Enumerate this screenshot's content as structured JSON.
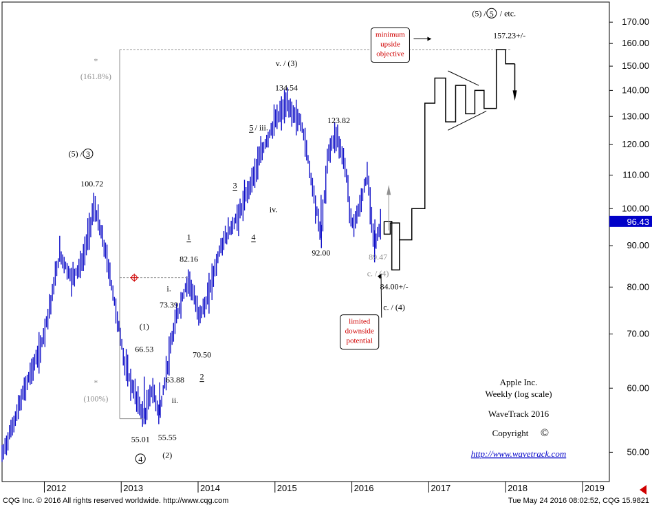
{
  "chart_data": {
    "type": "bar",
    "subtype": "ohlc-weekly",
    "scale": "log",
    "ylim": [
      46,
      180
    ],
    "xlim": [
      2011.45,
      2019.35
    ],
    "yticks": [
      "50.00",
      "60.00",
      "70.00",
      "80.00",
      "90.00",
      "100.00",
      "110.00",
      "120.00",
      "130.00",
      "140.00",
      "150.00",
      "160.00",
      "170.00"
    ],
    "ytick_values": [
      50,
      60,
      70,
      80,
      90,
      100,
      110,
      120,
      130,
      140,
      150,
      160,
      170
    ],
    "xticks": [
      "2012",
      "2013",
      "2014",
      "2015",
      "2016",
      "2017",
      "2018",
      "2019"
    ],
    "xtick_values": [
      2012,
      2013,
      2014,
      2015,
      2016,
      2017,
      2018,
      2019
    ],
    "last_price": "96.43",
    "last_price_value": 96.43,
    "anchors": [
      [
        2011.45,
        49.5
      ],
      [
        2011.62,
        55
      ],
      [
        2011.8,
        62
      ],
      [
        2011.95,
        67
      ],
      [
        2012.1,
        78
      ],
      [
        2012.2,
        88
      ],
      [
        2012.35,
        82
      ],
      [
        2012.5,
        86
      ],
      [
        2012.65,
        100.72
      ],
      [
        2012.8,
        88
      ],
      [
        2012.95,
        73
      ],
      [
        2013.05,
        64
      ],
      [
        2013.15,
        60
      ],
      [
        2013.3,
        55.01
      ],
      [
        2013.4,
        60
      ],
      [
        2013.5,
        55.55
      ],
      [
        2013.6,
        63.88
      ],
      [
        2013.72,
        73.39
      ],
      [
        2013.88,
        82.16
      ],
      [
        2014.0,
        74
      ],
      [
        2014.1,
        76
      ],
      [
        2014.3,
        90
      ],
      [
        2014.55,
        99
      ],
      [
        2014.75,
        112
      ],
      [
        2014.9,
        122
      ],
      [
        2015.0,
        128
      ],
      [
        2015.15,
        134.54
      ],
      [
        2015.35,
        127
      ],
      [
        2015.5,
        105
      ],
      [
        2015.6,
        92.0
      ],
      [
        2015.7,
        118
      ],
      [
        2015.8,
        123.82
      ],
      [
        2015.92,
        112
      ],
      [
        2016.0,
        95
      ],
      [
        2016.1,
        100
      ],
      [
        2016.2,
        110
      ],
      [
        2016.3,
        89.47
      ],
      [
        2016.38,
        96.43
      ]
    ],
    "projection": [
      [
        2016.42,
        96.43
      ],
      [
        2016.42,
        93
      ],
      [
        2016.5,
        93
      ],
      [
        2016.5,
        96
      ],
      [
        2016.62,
        96
      ],
      [
        2016.62,
        91.5
      ],
      [
        2016.78,
        91.5
      ],
      [
        2016.78,
        100
      ],
      [
        2016.95,
        100
      ],
      [
        2016.95,
        135
      ],
      [
        2017.08,
        135
      ],
      [
        2017.08,
        145
      ],
      [
        2017.22,
        145
      ],
      [
        2017.22,
        128
      ],
      [
        2017.35,
        128
      ],
      [
        2017.35,
        142
      ],
      [
        2017.48,
        142
      ],
      [
        2017.48,
        131
      ],
      [
        2017.6,
        131
      ],
      [
        2017.6,
        140
      ],
      [
        2017.72,
        140
      ],
      [
        2017.72,
        133
      ],
      [
        2017.88,
        133
      ],
      [
        2017.88,
        157.23
      ],
      [
        2018.0,
        157.23
      ],
      [
        2018.0,
        151
      ],
      [
        2018.12,
        151
      ]
    ],
    "labels": [
      {
        "text": "(5) /",
        "x": 2012.55,
        "y": 116,
        "circled": "3"
      },
      {
        "text": "100.72",
        "x": 2012.62,
        "y": 106.5
      },
      {
        "text": "v. / (3)",
        "x": 2015.15,
        "y": 150
      },
      {
        "text": "134.54",
        "x": 2015.15,
        "y": 140
      },
      {
        "text": "5",
        "x": 2014.72,
        "y": 125,
        "underline": true,
        "tail": " / iii."
      },
      {
        "text": "123.82",
        "x": 2015.83,
        "y": 127.5
      },
      {
        "text": "3",
        "x": 2014.48,
        "y": 106,
        "underline": true
      },
      {
        "text": "iv.",
        "x": 2014.98,
        "y": 99
      },
      {
        "text": "4",
        "x": 2014.72,
        "y": 91.5,
        "underline": true
      },
      {
        "text": "92.00",
        "x": 2015.6,
        "y": 87.5
      },
      {
        "text": "89.47",
        "x": 2016.34,
        "y": 86.5,
        "gray": true
      },
      {
        "text": "c. / (4)",
        "x": 2016.34,
        "y": 82.5,
        "gray": true
      },
      {
        "text": "84.00+/-",
        "x": 2016.55,
        "y": 79.5
      },
      {
        "text": "c. / (4)",
        "x": 2016.55,
        "y": 75
      },
      {
        "text": "1",
        "x": 2013.88,
        "y": 91.5,
        "underline": true
      },
      {
        "text": "82.16",
        "x": 2013.88,
        "y": 86
      },
      {
        "text": "i.",
        "x": 2013.62,
        "y": 79
      },
      {
        "text": "73.39",
        "x": 2013.62,
        "y": 75.5
      },
      {
        "text": "(1)",
        "x": 2013.3,
        "y": 71
      },
      {
        "text": "66.53",
        "x": 2013.3,
        "y": 66.5
      },
      {
        "text": "70.50",
        "x": 2014.05,
        "y": 65.5
      },
      {
        "text": "2",
        "x": 2014.05,
        "y": 61.5,
        "underline": true
      },
      {
        "text": "63.88",
        "x": 2013.7,
        "y": 61
      },
      {
        "text": "ii.",
        "x": 2013.7,
        "y": 57.5
      },
      {
        "text": "55.01",
        "x": 2013.25,
        "y": 51.5
      },
      {
        "text": "55.55",
        "x": 2013.6,
        "y": 51.8
      },
      {
        "text": "(2)",
        "x": 2013.6,
        "y": 49.2
      },
      {
        "text": "",
        "x": 2013.25,
        "y": 48.7,
        "circled": "4"
      },
      {
        "text": "*",
        "x": 2012.67,
        "y": 151,
        "gray": true
      },
      {
        "text": "(161.8%)",
        "x": 2012.67,
        "y": 144.5,
        "gray": true
      },
      {
        "text": "*",
        "x": 2012.67,
        "y": 60.5,
        "gray": true
      },
      {
        "text": "(100%)",
        "x": 2012.67,
        "y": 57.8,
        "gray": true
      },
      {
        "text": "(5) /",
        "x": 2017.8,
        "y": 173,
        "circled": "5",
        "tail": "/ etc."
      },
      {
        "text": "157.23+/-",
        "x": 2018.05,
        "y": 162.5
      }
    ],
    "callouts": [
      {
        "lines": [
          "minimum",
          "upside",
          "objective"
        ],
        "x": 2016.5,
        "y": 164
      },
      {
        "lines": [
          "limited",
          "downside",
          "potential"
        ],
        "x": 2016.1,
        "y": 72.5
      }
    ],
    "info": {
      "name": "Apple Inc.",
      "period": "Weekly (log scale)",
      "brand": "WaveTrack 2016",
      "copyright": "Copyright",
      "copyright_symbol": "©",
      "url": "http://www.wavetrack.com"
    },
    "colors": {
      "bars": "#1010c8",
      "projection": "#000000",
      "callout": "#d00000",
      "gray": "#909090",
      "price_tag": "#0000c8"
    }
  },
  "footer": {
    "left": "CQG Inc. © 2016 All rights reserved worldwide. http://www.cqg.com",
    "right": "Tue May 24 2016 08:02:52, CQG 15.9821"
  }
}
